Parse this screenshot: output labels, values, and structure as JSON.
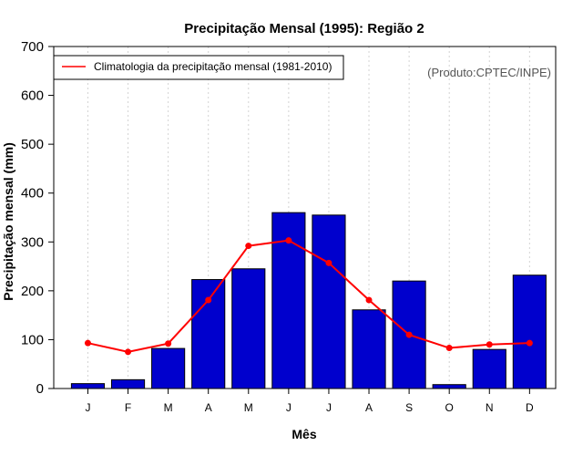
{
  "chart_data": {
    "type": "bar",
    "title": "Precipitação Mensal (1995): Região 2",
    "xlabel": "Mês",
    "ylabel": "Precipitação mensal (mm)",
    "ylim": [
      0,
      700
    ],
    "yticks": [
      0,
      100,
      200,
      300,
      400,
      500,
      600,
      700
    ],
    "categories": [
      "J",
      "F",
      "M",
      "A",
      "M",
      "J",
      "J",
      "A",
      "S",
      "O",
      "N",
      "D"
    ],
    "series": [
      {
        "name": "Precipitação mensal (1995)",
        "type": "bar",
        "color": "#0000cd",
        "values": [
          10,
          18,
          82,
          223,
          245,
          360,
          355,
          161,
          220,
          8,
          80,
          232
        ]
      },
      {
        "name": "Climatologia da precipitação mensal (1981-2010)",
        "type": "line",
        "color": "#ff0000",
        "values": [
          93,
          75,
          92,
          181,
          292,
          303,
          257,
          181,
          110,
          83,
          90,
          93
        ]
      }
    ],
    "legend": {
      "position": "top-left",
      "entries": [
        "Climatologia da precipitação mensal (1981-2010)"
      ]
    },
    "annotation": "(Produto:CPTEC/INPE)",
    "grid": "vertical-dotted"
  }
}
